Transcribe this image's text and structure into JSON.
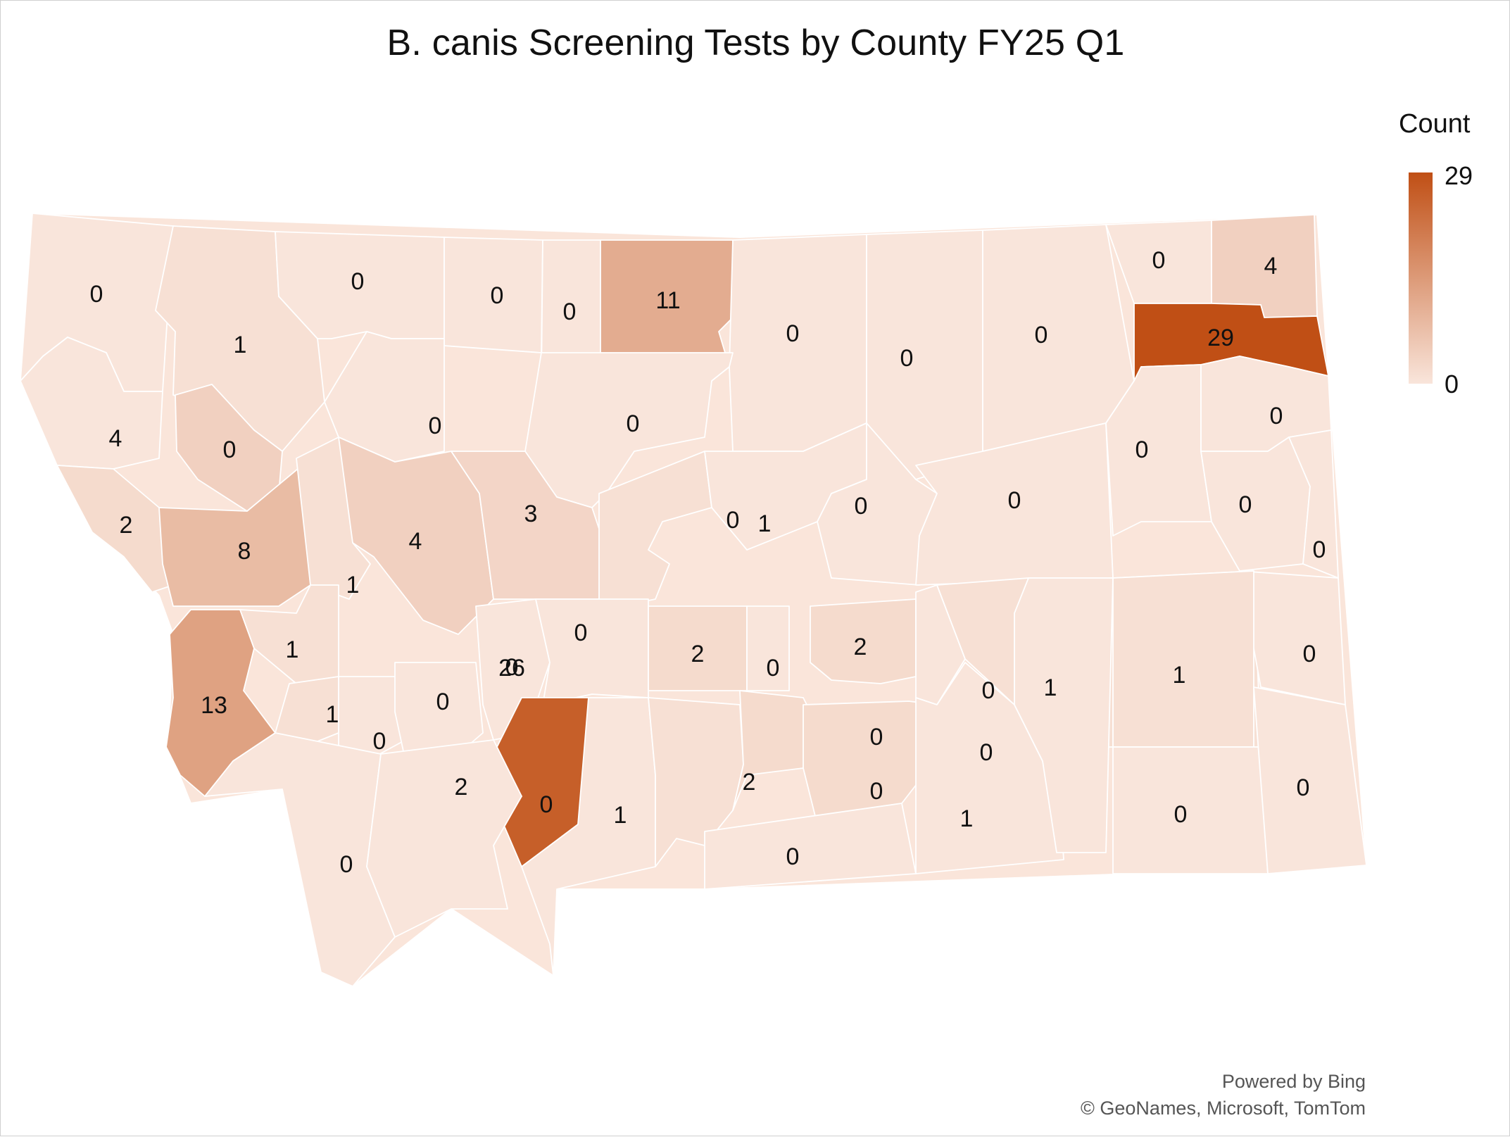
{
  "title": "B. canis Screening Tests by County FY25 Q1",
  "legend": {
    "title": "Count",
    "max": "29",
    "min": "0",
    "color_high": "#c04f15",
    "color_low": "#f9e5db"
  },
  "attribution": {
    "line1": "Powered by Bing",
    "line2": "© GeoNames, Microsoft, TomTom"
  },
  "map_data": {
    "type": "choropleth",
    "region": "Montana",
    "counties": [
      {
        "label": "0"
      },
      {
        "label": "1"
      },
      {
        "label": "0"
      },
      {
        "label": "0"
      },
      {
        "label": "0"
      },
      {
        "label": "11"
      },
      {
        "label": "0"
      },
      {
        "label": "0"
      },
      {
        "label": "0"
      },
      {
        "label": "0"
      },
      {
        "label": "4"
      },
      {
        "label": "0"
      },
      {
        "label": "0"
      },
      {
        "label": "0"
      },
      {
        "label": "4"
      },
      {
        "label": "2"
      },
      {
        "label": "8"
      },
      {
        "label": "4"
      },
      {
        "label": "3"
      },
      {
        "label": "1"
      },
      {
        "label": "1"
      },
      {
        "label": "0"
      },
      {
        "label": "0"
      },
      {
        "label": "0"
      },
      {
        "label": "29"
      },
      {
        "label": "0"
      },
      {
        "label": "0"
      },
      {
        "label": "0"
      },
      {
        "label": "0"
      },
      {
        "label": "13"
      },
      {
        "label": "1"
      },
      {
        "label": "1"
      },
      {
        "label": "0"
      },
      {
        "label": "0"
      },
      {
        "label": "0"
      },
      {
        "label": "0"
      },
      {
        "label": "2"
      },
      {
        "label": "0"
      },
      {
        "label": "2"
      },
      {
        "label": "0"
      },
      {
        "label": "1"
      },
      {
        "label": "1"
      },
      {
        "label": "0"
      },
      {
        "label": "26"
      },
      {
        "label": "0"
      },
      {
        "label": "1"
      },
      {
        "label": "2"
      },
      {
        "label": "2"
      },
      {
        "label": "0"
      },
      {
        "label": "0"
      },
      {
        "label": "1"
      },
      {
        "label": "0"
      },
      {
        "label": "0"
      },
      {
        "label": "0"
      },
      {
        "label": "0"
      },
      {
        "label": "0"
      }
    ]
  }
}
